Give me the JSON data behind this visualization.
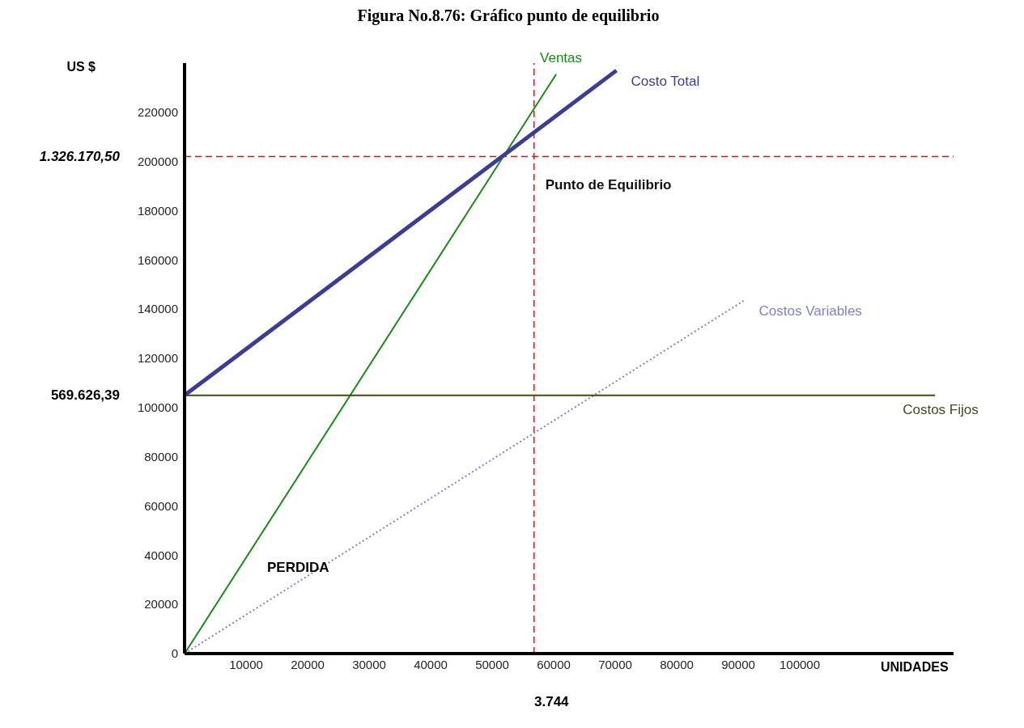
{
  "chart_data": {
    "type": "line",
    "title": "Figura No.8.76: Gráfico punto de equilibrio",
    "xlabel": "UNIDADES",
    "ylabel": "US $",
    "xlim": [
      0,
      125000
    ],
    "xticks": [
      10000,
      20000,
      30000,
      40000,
      50000,
      60000,
      70000,
      80000,
      90000,
      100000
    ],
    "ylim": [
      0,
      240000
    ],
    "yticks": [
      0,
      20000,
      40000,
      60000,
      80000,
      100000,
      120000,
      140000,
      160000,
      180000,
      200000,
      220000
    ],
    "series": [
      {
        "name": "Ventas",
        "color": "#1a8a1a",
        "x": [
          0,
          60400
        ],
        "values": [
          0,
          235500
        ]
      },
      {
        "name": "Costo Total",
        "color": "#3b3b9a",
        "x": [
          0,
          70200
        ],
        "values": [
          105000,
          237000
        ]
      },
      {
        "name": "Costos Variables",
        "color": "#8080d0",
        "x": [
          0,
          91000
        ],
        "values": [
          0,
          143600
        ],
        "line_style": "dotted"
      },
      {
        "name": "Costos Fijos",
        "color": "#3d4a1a",
        "x": [
          0,
          122000
        ],
        "values": [
          105000,
          105000
        ]
      }
    ],
    "ref_lines": [
      {
        "axis": "x",
        "value": 56800,
        "color": "#ff0000",
        "line_style": "dashed"
      },
      {
        "axis": "y",
        "value": 202000,
        "color": "#ff0000",
        "line_style": "dashed"
      }
    ],
    "annotations": [
      {
        "text": "Punto de Equilibrio",
        "x": 56800,
        "y": 202000
      },
      "1.326.170,50",
      "569.626,39",
      "PERDIDA",
      "3.744"
    ],
    "legend": false,
    "grid": false,
    "marker": "none",
    "line_style": "solid"
  }
}
